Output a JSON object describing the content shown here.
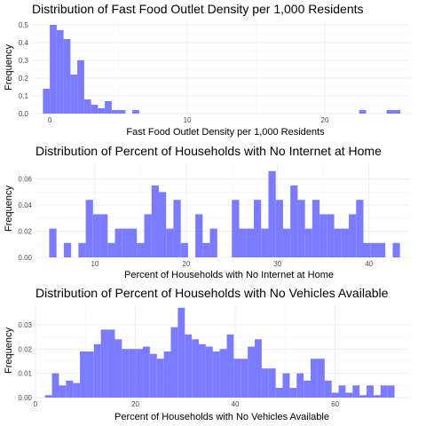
{
  "chart_data": [
    {
      "type": "bar",
      "subtype": "histogram",
      "title": "Distribution of Fast Food Outlet Density per 1,000 Residents",
      "xlabel": "Fast Food Outlet Density per 1,000 Residents",
      "ylabel": "Frequency",
      "xlim": [
        -1.3,
        26.2
      ],
      "ylim": [
        0,
        0.52
      ],
      "xticks": [
        0,
        10,
        20
      ],
      "yticks": [
        0,
        0.1,
        0.2,
        0.3,
        0.4,
        0.5
      ],
      "ytick_labels": [
        "0.0",
        "0.1",
        "0.2",
        "0.3",
        "0.4",
        "0.5"
      ],
      "bin_width": 0.5,
      "bins": [
        [
          -0.25,
          0.14
        ],
        [
          0.25,
          0.5
        ],
        [
          0.75,
          0.47
        ],
        [
          1.25,
          0.42
        ],
        [
          1.75,
          0.22
        ],
        [
          2.25,
          0.3
        ],
        [
          2.75,
          0.08
        ],
        [
          3.25,
          0.05
        ],
        [
          3.75,
          0.03
        ],
        [
          4.25,
          0.07
        ],
        [
          4.75,
          0.02
        ],
        [
          5.25,
          0.02
        ],
        [
          6.25,
          0.02
        ],
        [
          22.75,
          0.02
        ],
        [
          24.75,
          0.02
        ],
        [
          25.25,
          0.02
        ]
      ],
      "grid": true,
      "bar_color": "#7b7bff"
    },
    {
      "type": "bar",
      "subtype": "histogram",
      "title": "Distribution of Percent of Households with No Internet at Home",
      "xlabel": "Percent of Households with No Internet at Home",
      "ylabel": "Frequency",
      "xlim": [
        3.5,
        44.5
      ],
      "ylim": [
        0,
        0.072
      ],
      "xticks": [
        10,
        20,
        30,
        40
      ],
      "yticks": [
        0,
        0.02,
        0.04,
        0.06
      ],
      "ytick_labels": [
        "0.00",
        "0.02",
        "0.04",
        "0.06"
      ],
      "bin_width": 0.8,
      "bins": [
        [
          5.4,
          0.022
        ],
        [
          6.2,
          0.0
        ],
        [
          7.0,
          0.011
        ],
        [
          7.8,
          0.0
        ],
        [
          8.6,
          0.011
        ],
        [
          9.4,
          0.044
        ],
        [
          10.2,
          0.033
        ],
        [
          11.0,
          0.033
        ],
        [
          11.8,
          0.011
        ],
        [
          12.6,
          0.022
        ],
        [
          13.4,
          0.022
        ],
        [
          14.2,
          0.022
        ],
        [
          15.0,
          0.011
        ],
        [
          15.8,
          0.033
        ],
        [
          16.6,
          0.055
        ],
        [
          17.4,
          0.05
        ],
        [
          18.2,
          0.022
        ],
        [
          19.0,
          0.044
        ],
        [
          19.8,
          0.011
        ],
        [
          20.6,
          0.0
        ],
        [
          21.4,
          0.033
        ],
        [
          22.2,
          0.011
        ],
        [
          23.0,
          0.022
        ],
        [
          23.8,
          0.0
        ],
        [
          24.6,
          0.0
        ],
        [
          25.4,
          0.044
        ],
        [
          26.2,
          0.022
        ],
        [
          27.0,
          0.022
        ],
        [
          27.8,
          0.044
        ],
        [
          28.6,
          0.022
        ],
        [
          29.4,
          0.066
        ],
        [
          30.2,
          0.044
        ],
        [
          31.0,
          0.022
        ],
        [
          31.8,
          0.055
        ],
        [
          32.6,
          0.044
        ],
        [
          33.4,
          0.022
        ],
        [
          34.2,
          0.044
        ],
        [
          35.0,
          0.033
        ],
        [
          35.8,
          0.033
        ],
        [
          36.6,
          0.022
        ],
        [
          37.4,
          0.022
        ],
        [
          38.2,
          0.033
        ],
        [
          39.0,
          0.044
        ],
        [
          39.8,
          0.011
        ],
        [
          40.6,
          0.011
        ],
        [
          41.4,
          0.011
        ],
        [
          42.2,
          0.0
        ],
        [
          43.0,
          0.011
        ]
      ],
      "grid": true,
      "bar_color": "#7b7bff"
    },
    {
      "type": "bar",
      "subtype": "histogram",
      "title": "Distribution of Percent of Households with No Vehicles Available",
      "xlabel": "Percent of Households with No Vehicles Available",
      "ylabel": "Frequency",
      "xlim": [
        0,
        75
      ],
      "ylim": [
        0,
        0.038
      ],
      "xticks": [
        0,
        20,
        40,
        60
      ],
      "yticks": [
        0,
        0.01,
        0.02,
        0.03
      ],
      "ytick_labels": [
        "0.00",
        "0.01",
        "0.02",
        "0.03"
      ],
      "bin_width": 1.4,
      "bins": [
        [
          2.6,
          0.001
        ],
        [
          4.0,
          0.01
        ],
        [
          5.4,
          0.005
        ],
        [
          6.8,
          0.007
        ],
        [
          8.2,
          0.006
        ],
        [
          9.6,
          0.019
        ],
        [
          11.0,
          0.019
        ],
        [
          12.4,
          0.022
        ],
        [
          13.8,
          0.028
        ],
        [
          15.2,
          0.028
        ],
        [
          16.6,
          0.024
        ],
        [
          18.0,
          0.02
        ],
        [
          19.4,
          0.02
        ],
        [
          20.8,
          0.02
        ],
        [
          22.2,
          0.021
        ],
        [
          23.6,
          0.018
        ],
        [
          25.0,
          0.016
        ],
        [
          26.4,
          0.019
        ],
        [
          27.8,
          0.029
        ],
        [
          29.2,
          0.037
        ],
        [
          30.6,
          0.026
        ],
        [
          32.0,
          0.024
        ],
        [
          33.4,
          0.022
        ],
        [
          34.8,
          0.021
        ],
        [
          36.2,
          0.019
        ],
        [
          37.6,
          0.02
        ],
        [
          39.0,
          0.026
        ],
        [
          40.4,
          0.016
        ],
        [
          41.8,
          0.016
        ],
        [
          43.2,
          0.021
        ],
        [
          44.6,
          0.024
        ],
        [
          46.0,
          0.012
        ],
        [
          47.4,
          0.012
        ],
        [
          48.8,
          0.004
        ],
        [
          50.2,
          0.01
        ],
        [
          51.6,
          0.004
        ],
        [
          53.0,
          0.01
        ],
        [
          54.4,
          0.007
        ],
        [
          55.8,
          0.016
        ],
        [
          57.2,
          0.016
        ],
        [
          58.6,
          0.007
        ],
        [
          60.0,
          0.002
        ],
        [
          61.4,
          0.005
        ],
        [
          62.8,
          0.002
        ],
        [
          64.2,
          0.005
        ],
        [
          65.6,
          0.001
        ],
        [
          67.0,
          0.005
        ],
        [
          68.4,
          0.001
        ],
        [
          69.8,
          0.005
        ],
        [
          71.2,
          0.005
        ]
      ],
      "grid": true,
      "bar_color": "#7b7bff"
    }
  ]
}
